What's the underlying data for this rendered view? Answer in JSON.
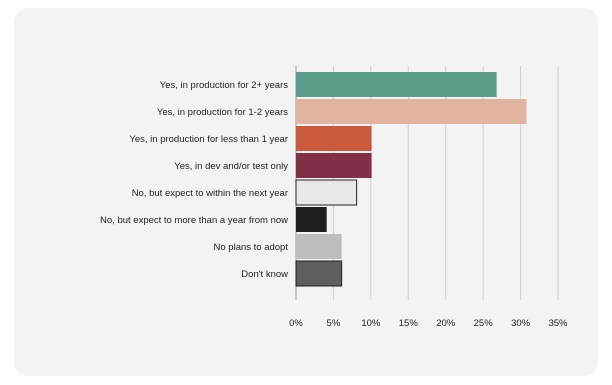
{
  "chart_data": {
    "type": "bar",
    "orientation": "horizontal",
    "title": "",
    "xlabel": "",
    "ylabel": "",
    "xlim": [
      0,
      35
    ],
    "ticks": [
      0,
      5,
      10,
      15,
      20,
      25,
      30,
      35
    ],
    "tick_labels": [
      "0%",
      "5%",
      "10%",
      "15%",
      "20%",
      "25%",
      "30%",
      "35%"
    ],
    "grid": "vertical",
    "legend": "none",
    "categories": [
      "Yes, in production for 2+ years",
      "Yes, in production for 1-2 years",
      "Yes, in production for less than 1 year",
      "Yes, in dev and/or test only",
      "No, but expect to within the next year",
      "No, but expect to more than a year from now",
      "No plans to adopt",
      "Don't know"
    ],
    "values": [
      26.8,
      30.8,
      10.1,
      10.1,
      8.1,
      4.1,
      6.1,
      6.1
    ],
    "colors": [
      "#5a9e8b",
      "#e2b39f",
      "#cb5a3c",
      "#832f48",
      "#e8e8e8",
      "#1e1e1e",
      "#bdbdbd",
      "#5e5e5e"
    ],
    "outlined": [
      false,
      false,
      false,
      false,
      true,
      false,
      false,
      true
    ]
  }
}
